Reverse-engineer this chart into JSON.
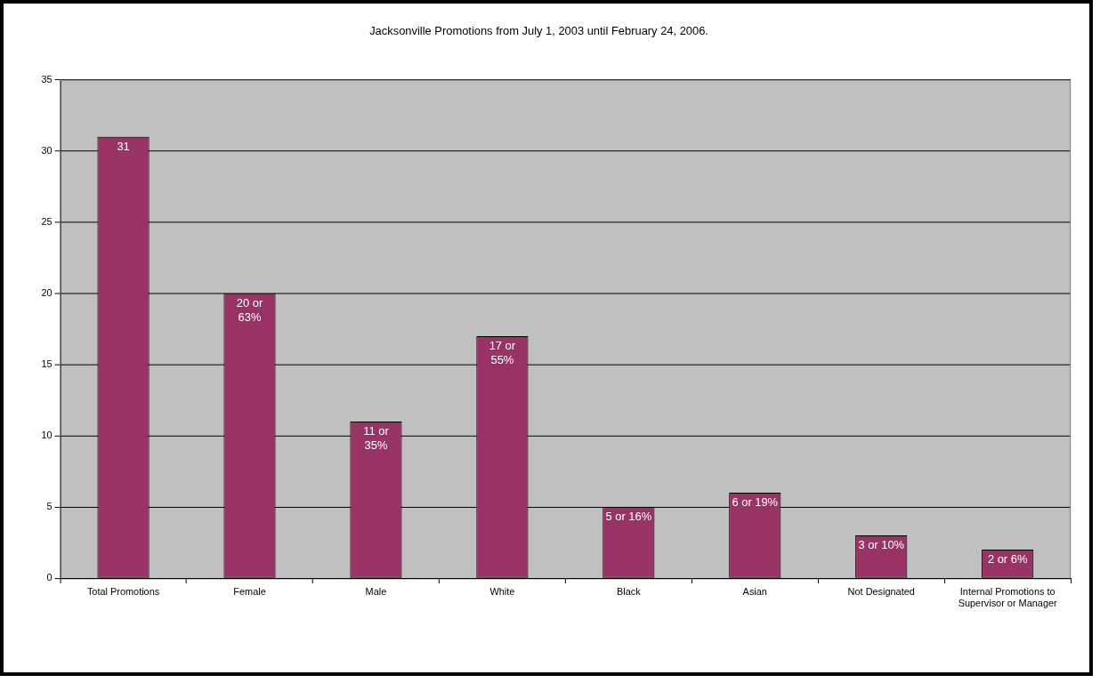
{
  "chart_data": {
    "type": "bar",
    "title": "Jacksonville Promotions from July 1, 2003 until February 24, 2006.",
    "categories": [
      "Total Promotions",
      "Female",
      "Male",
      "White",
      "Black",
      "Asian",
      "Not Designated",
      "Internal Promotions to Supervisor or Manager"
    ],
    "values": [
      31,
      20,
      11,
      17,
      5,
      6,
      3,
      2
    ],
    "value_labels": [
      "31",
      "20 or 63%",
      "11 or 35%",
      "17 or 55%",
      "5 or 16%",
      "6 or 19%",
      "3 or 10%",
      "2 or 6%"
    ],
    "color": "#993366",
    "ylim": [
      0,
      35
    ],
    "yticks": [
      0,
      5,
      10,
      15,
      20,
      25,
      30,
      35
    ],
    "grid": "y"
  }
}
